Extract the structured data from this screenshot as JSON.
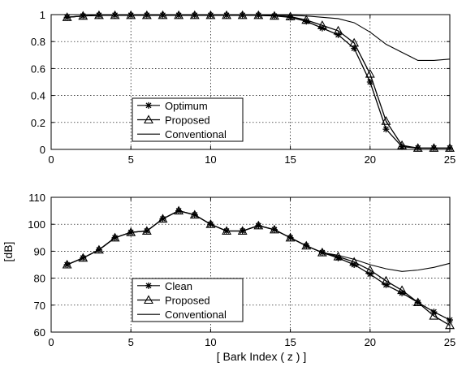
{
  "chart_data": [
    {
      "type": "line",
      "title": "",
      "xlabel": "",
      "ylabel": "",
      "xlim": [
        0,
        25
      ],
      "ylim": [
        0,
        1
      ],
      "xticks": [
        0,
        5,
        10,
        15,
        20,
        25
      ],
      "yticks": [
        0,
        0.2,
        0.4,
        0.6,
        0.8,
        1
      ],
      "grid": true,
      "legend_position": "center-left",
      "series": [
        {
          "name": "Optimum",
          "marker": "star",
          "x": [
            1,
            2,
            3,
            4,
            5,
            6,
            7,
            8,
            9,
            10,
            11,
            12,
            13,
            14,
            15,
            16,
            17,
            18,
            19,
            20,
            21,
            22,
            23,
            24,
            25
          ],
          "y": [
            0.98,
            0.99,
            0.995,
            0.995,
            0.995,
            0.995,
            0.995,
            0.995,
            0.995,
            0.995,
            0.995,
            0.995,
            0.995,
            0.99,
            0.98,
            0.95,
            0.9,
            0.85,
            0.75,
            0.5,
            0.15,
            0.02,
            0.01,
            0.01,
            0.01
          ]
        },
        {
          "name": "Proposed",
          "marker": "triangle",
          "x": [
            1,
            2,
            3,
            4,
            5,
            6,
            7,
            8,
            9,
            10,
            11,
            12,
            13,
            14,
            15,
            16,
            17,
            18,
            19,
            20,
            21,
            22,
            23,
            24,
            25
          ],
          "y": [
            0.98,
            0.99,
            0.995,
            0.995,
            0.995,
            0.995,
            0.995,
            0.995,
            0.995,
            0.995,
            0.995,
            0.995,
            0.995,
            0.99,
            0.985,
            0.96,
            0.92,
            0.88,
            0.79,
            0.56,
            0.21,
            0.03,
            0.01,
            0.01,
            0.01
          ]
        },
        {
          "name": "Conventional",
          "marker": "none",
          "x": [
            1,
            2,
            3,
            4,
            5,
            6,
            7,
            8,
            9,
            10,
            11,
            12,
            13,
            14,
            15,
            16,
            17,
            18,
            19,
            20,
            21,
            22,
            23,
            24,
            25
          ],
          "y": [
            0.98,
            0.99,
            0.995,
            0.995,
            0.995,
            0.995,
            0.995,
            0.995,
            0.995,
            0.995,
            0.995,
            0.995,
            0.995,
            0.995,
            0.995,
            0.99,
            0.98,
            0.97,
            0.94,
            0.87,
            0.78,
            0.72,
            0.66,
            0.66,
            0.67
          ]
        }
      ]
    },
    {
      "type": "line",
      "title": "",
      "xlabel": "[ Bark Index ( z ) ]",
      "ylabel": "[dB]",
      "xlim": [
        0,
        25
      ],
      "ylim": [
        60,
        110
      ],
      "xticks": [
        0,
        5,
        10,
        15,
        20,
        25
      ],
      "yticks": [
        60,
        70,
        80,
        90,
        100,
        110
      ],
      "grid": true,
      "legend_position": "bottom-center",
      "series": [
        {
          "name": "Clean",
          "marker": "star",
          "x": [
            1,
            2,
            3,
            4,
            5,
            6,
            7,
            8,
            9,
            10,
            11,
            12,
            13,
            14,
            15,
            16,
            17,
            18,
            19,
            20,
            21,
            22,
            23,
            24,
            25
          ],
          "y": [
            85,
            87.5,
            90.5,
            95,
            97,
            97.5,
            102,
            105,
            103.5,
            100,
            97.5,
            97.5,
            99.5,
            98,
            95,
            92,
            89.5,
            87.5,
            85,
            81.5,
            77.5,
            74.5,
            71,
            67.5,
            64.5
          ]
        },
        {
          "name": "Proposed",
          "marker": "triangle",
          "x": [
            1,
            2,
            3,
            4,
            5,
            6,
            7,
            8,
            9,
            10,
            11,
            12,
            13,
            14,
            15,
            16,
            17,
            18,
            19,
            20,
            21,
            22,
            23,
            24,
            25
          ],
          "y": [
            85,
            87.5,
            90.5,
            95,
            97,
            97.5,
            102,
            105,
            103.5,
            100,
            97.5,
            97.5,
            99.5,
            98,
            95,
            92,
            89.5,
            88,
            86,
            83,
            79,
            75.5,
            71,
            66,
            62.5
          ]
        },
        {
          "name": "Conventional",
          "marker": "none",
          "x": [
            1,
            2,
            3,
            4,
            5,
            6,
            7,
            8,
            9,
            10,
            11,
            12,
            13,
            14,
            15,
            16,
            17,
            18,
            19,
            20,
            21,
            22,
            23,
            24,
            25
          ],
          "y": [
            85,
            87.5,
            90.5,
            95,
            97,
            97.5,
            102,
            105,
            103.5,
            100,
            97.5,
            97.5,
            99.5,
            98,
            95,
            92,
            89.5,
            88.5,
            87,
            85,
            83.5,
            82.5,
            83,
            84,
            85.5
          ]
        }
      ]
    }
  ]
}
